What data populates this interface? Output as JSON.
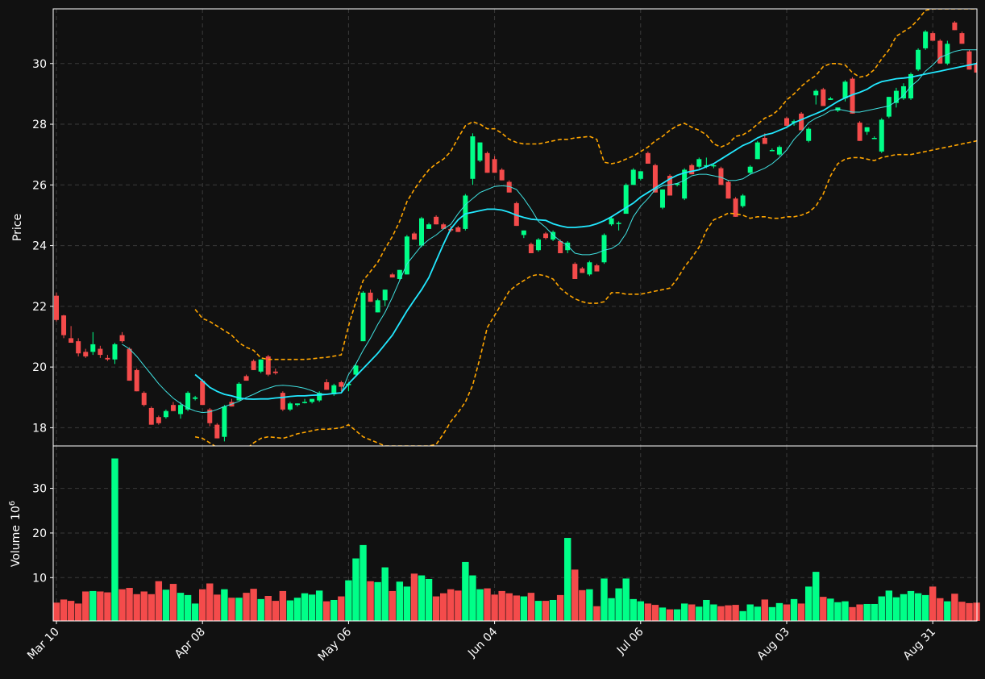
{
  "colors": {
    "background": "#111111",
    "up": "#00ff88",
    "down": "#f44b4b",
    "bollinger": "#ffa500",
    "ma_fast": "#40e0e0",
    "ma_slow": "#22e8ff",
    "grid": "#3a3a3a",
    "text": "#ffffff"
  },
  "chart_data": {
    "type": "candlestick",
    "title": "",
    "grid": true,
    "price_panel": {
      "ylabel": "Price",
      "ylim": [
        17.4,
        31.8
      ],
      "yticks": [
        "18",
        "20",
        "22",
        "24",
        "26",
        "28",
        "30"
      ]
    },
    "volume_panel": {
      "ylabel": "Volume",
      "ylabel_exponent": "10",
      "ylabel_power": "6",
      "ylim": [
        0.3,
        39.5
      ],
      "yticks": [
        "10",
        "20",
        "30"
      ]
    },
    "x_axis": {
      "tick_labels": [
        "Mar 10",
        "Apr 08",
        "May 06",
        "Jun 04",
        "Jul 06",
        "Aug 03",
        "Aug 31"
      ],
      "tick_index": [
        0,
        20,
        40,
        60,
        80,
        100,
        120
      ]
    },
    "overlays": [
      "Bollinger upper",
      "Bollinger lower",
      "MA 10",
      "MA 20"
    ],
    "candles": [
      [
        22.35,
        22.45,
        21.5,
        21.55
      ],
      [
        21.7,
        21.72,
        20.95,
        21.05
      ],
      [
        20.95,
        21.35,
        20.8,
        20.8
      ],
      [
        20.85,
        20.95,
        20.35,
        20.45
      ],
      [
        20.5,
        20.6,
        20.3,
        20.35
      ],
      [
        20.5,
        21.15,
        20.4,
        20.75
      ],
      [
        20.6,
        20.7,
        20.3,
        20.4
      ],
      [
        20.3,
        20.4,
        20.2,
        20.25
      ],
      [
        20.25,
        20.8,
        20.1,
        20.75
      ],
      [
        21.05,
        21.15,
        20.8,
        20.85
      ],
      [
        20.6,
        20.65,
        19.55,
        19.55
      ],
      [
        19.9,
        19.95,
        19.2,
        19.2
      ],
      [
        19.15,
        19.2,
        18.7,
        18.75
      ],
      [
        18.65,
        18.7,
        18.1,
        18.1
      ],
      [
        18.35,
        18.4,
        18.1,
        18.15
      ],
      [
        18.35,
        18.6,
        18.3,
        18.55
      ],
      [
        18.75,
        18.85,
        18.55,
        18.55
      ],
      [
        18.45,
        18.85,
        18.3,
        18.75
      ],
      [
        18.6,
        19.2,
        18.55,
        19.15
      ],
      [
        18.95,
        19.05,
        18.9,
        19.0
      ],
      [
        19.55,
        19.6,
        18.75,
        18.75
      ],
      [
        18.6,
        18.65,
        18.05,
        18.15
      ],
      [
        18.1,
        18.15,
        17.65,
        17.65
      ],
      [
        17.7,
        18.75,
        17.55,
        18.7
      ],
      [
        18.85,
        18.95,
        18.7,
        18.7
      ],
      [
        18.9,
        19.5,
        18.9,
        19.45
      ],
      [
        19.7,
        19.75,
        19.55,
        19.55
      ],
      [
        20.2,
        20.25,
        19.9,
        19.9
      ],
      [
        19.85,
        20.25,
        19.8,
        20.25
      ],
      [
        20.35,
        20.4,
        19.7,
        19.75
      ],
      [
        19.85,
        19.95,
        19.75,
        19.8
      ],
      [
        19.15,
        19.2,
        18.55,
        18.6
      ],
      [
        18.6,
        18.85,
        18.55,
        18.8
      ],
      [
        18.75,
        18.8,
        18.7,
        18.8
      ],
      [
        18.85,
        18.95,
        18.8,
        18.85
      ],
      [
        18.85,
        18.95,
        18.8,
        18.95
      ],
      [
        18.9,
        19.2,
        18.85,
        19.15
      ],
      [
        19.5,
        19.6,
        19.25,
        19.25
      ],
      [
        19.1,
        19.45,
        19.05,
        19.4
      ],
      [
        19.5,
        19.55,
        19.2,
        19.35
      ],
      [
        19.4,
        19.5,
        19.2,
        19.45
      ],
      [
        19.75,
        20.1,
        19.7,
        20.05
      ],
      [
        20.85,
        22.5,
        20.85,
        22.45
      ],
      [
        22.45,
        22.55,
        22.15,
        22.15
      ],
      [
        21.8,
        22.25,
        21.8,
        22.2
      ],
      [
        22.2,
        22.55,
        22.0,
        22.55
      ],
      [
        23.05,
        23.1,
        22.95,
        22.95
      ],
      [
        22.9,
        23.2,
        22.85,
        23.2
      ],
      [
        23.05,
        24.35,
        23.05,
        24.3
      ],
      [
        24.4,
        24.45,
        24.2,
        24.2
      ],
      [
        24.0,
        24.95,
        23.95,
        24.9
      ],
      [
        24.55,
        24.75,
        24.55,
        24.7
      ],
      [
        24.95,
        25.0,
        24.7,
        24.7
      ],
      [
        24.7,
        24.75,
        24.55,
        24.55
      ],
      [
        24.55,
        24.65,
        24.45,
        24.5
      ],
      [
        24.6,
        24.65,
        24.45,
        24.45
      ],
      [
        24.55,
        25.7,
        24.5,
        25.65
      ],
      [
        26.2,
        27.7,
        26.0,
        27.6
      ],
      [
        26.8,
        27.4,
        26.75,
        27.4
      ],
      [
        27.05,
        27.1,
        26.4,
        26.4
      ],
      [
        26.85,
        26.95,
        26.4,
        26.4
      ],
      [
        26.5,
        26.55,
        26.15,
        26.15
      ],
      [
        26.1,
        26.15,
        25.75,
        25.75
      ],
      [
        25.4,
        25.45,
        24.65,
        24.65
      ],
      [
        24.35,
        24.5,
        24.25,
        24.5
      ],
      [
        24.05,
        24.1,
        23.75,
        23.75
      ],
      [
        23.85,
        24.25,
        23.8,
        24.2
      ],
      [
        24.4,
        24.45,
        24.2,
        24.25
      ],
      [
        24.2,
        24.5,
        24.15,
        24.45
      ],
      [
        24.15,
        24.2,
        23.75,
        23.75
      ],
      [
        23.85,
        24.15,
        23.75,
        24.1
      ],
      [
        23.4,
        23.45,
        22.9,
        22.9
      ],
      [
        23.25,
        23.3,
        23.1,
        23.1
      ],
      [
        23.05,
        23.5,
        23.0,
        23.45
      ],
      [
        23.35,
        23.4,
        23.15,
        23.15
      ],
      [
        23.45,
        24.4,
        23.4,
        24.35
      ],
      [
        24.7,
        24.95,
        24.65,
        24.9
      ],
      [
        24.75,
        24.8,
        24.5,
        24.75
      ],
      [
        25.05,
        26.05,
        25.05,
        26.0
      ],
      [
        26.0,
        26.55,
        26.0,
        26.5
      ],
      [
        26.2,
        26.45,
        26.15,
        26.45
      ],
      [
        27.05,
        27.1,
        26.7,
        26.7
      ],
      [
        26.65,
        26.7,
        25.75,
        25.75
      ],
      [
        25.25,
        25.85,
        25.2,
        25.85
      ],
      [
        26.3,
        26.35,
        25.65,
        25.65
      ],
      [
        26.0,
        26.05,
        25.95,
        26.05
      ],
      [
        25.55,
        26.55,
        25.5,
        26.5
      ],
      [
        26.65,
        26.7,
        26.35,
        26.35
      ],
      [
        26.6,
        26.9,
        26.55,
        26.85
      ],
      [
        26.6,
        26.9,
        26.55,
        26.65
      ],
      [
        26.65,
        26.7,
        26.55,
        26.65
      ],
      [
        26.55,
        26.6,
        26.0,
        26.0
      ],
      [
        26.1,
        26.15,
        25.55,
        25.55
      ],
      [
        25.55,
        25.6,
        24.95,
        24.95
      ],
      [
        25.3,
        25.7,
        25.25,
        25.65
      ],
      [
        26.4,
        26.65,
        26.35,
        26.6
      ],
      [
        26.85,
        27.45,
        26.85,
        27.4
      ],
      [
        27.55,
        27.7,
        27.35,
        27.35
      ],
      [
        27.15,
        27.2,
        27.15,
        27.15
      ],
      [
        27.0,
        27.3,
        26.95,
        27.25
      ],
      [
        28.2,
        28.25,
        27.95,
        27.95
      ],
      [
        28.05,
        28.15,
        27.95,
        28.1
      ],
      [
        28.35,
        28.4,
        27.8,
        27.8
      ],
      [
        27.45,
        27.9,
        27.4,
        27.85
      ],
      [
        28.95,
        29.15,
        28.65,
        29.1
      ],
      [
        29.15,
        29.2,
        28.6,
        28.6
      ],
      [
        28.8,
        28.9,
        28.8,
        28.85
      ],
      [
        28.45,
        28.55,
        28.4,
        28.55
      ],
      [
        28.85,
        29.45,
        28.75,
        29.4
      ],
      [
        29.5,
        29.55,
        28.35,
        28.35
      ],
      [
        28.05,
        28.1,
        27.45,
        27.45
      ],
      [
        27.75,
        27.9,
        27.65,
        27.9
      ],
      [
        27.55,
        27.6,
        27.55,
        27.55
      ],
      [
        27.1,
        28.2,
        27.05,
        28.15
      ],
      [
        28.25,
        28.9,
        28.2,
        28.9
      ],
      [
        28.7,
        29.2,
        28.55,
        29.1
      ],
      [
        28.85,
        29.35,
        28.8,
        29.25
      ],
      [
        28.85,
        29.7,
        28.8,
        29.65
      ],
      [
        29.8,
        30.5,
        29.75,
        30.45
      ],
      [
        30.5,
        31.1,
        30.45,
        31.05
      ],
      [
        31.0,
        31.05,
        30.75,
        30.75
      ],
      [
        30.75,
        30.8,
        30.0,
        30.0
      ],
      [
        30.0,
        30.75,
        29.95,
        30.65
      ],
      [
        31.35,
        31.4,
        31.1,
        31.1
      ],
      [
        31.0,
        31.05,
        30.65,
        30.65
      ],
      [
        30.4,
        30.45,
        29.8,
        29.8
      ],
      [
        30.0,
        30.05,
        29.7,
        29.7
      ]
    ],
    "volume": [
      4.4,
      5.1,
      4.8,
      4.2,
      6.9,
      7.0,
      6.9,
      6.7,
      36.7,
      7.4,
      7.7,
      6.3,
      6.9,
      6.3,
      9.2,
      7.3,
      8.6,
      6.6,
      6.1,
      4.2,
      7.4,
      8.7,
      6.2,
      7.4,
      5.5,
      5.5,
      6.6,
      7.5,
      5.2,
      5.9,
      4.8,
      7.0,
      4.9,
      5.5,
      6.5,
      6.2,
      7.1,
      4.7,
      5.0,
      5.8,
      9.4,
      14.3,
      17.3,
      9.2,
      9.0,
      12.3,
      7.0,
      9.1,
      8.0,
      10.9,
      10.5,
      9.7,
      5.8,
      6.5,
      7.4,
      7.1,
      13.5,
      10.5,
      7.4,
      7.6,
      6.2,
      7.0,
      6.5,
      6.0,
      5.8,
      6.6,
      4.8,
      4.8,
      5.0,
      6.1,
      18.9,
      11.8,
      7.2,
      7.4,
      3.6,
      9.8,
      5.4,
      7.6,
      9.8,
      5.2,
      4.7,
      4.2,
      3.9,
      3.3,
      2.9,
      2.9,
      4.2,
      4.0,
      3.5,
      5.0,
      4.0,
      3.6,
      3.8,
      3.9,
      2.5,
      4.0,
      3.5,
      5.1,
      3.4,
      4.3,
      4.0,
      5.2,
      4.2,
      8.0,
      11.3,
      5.7,
      5.3,
      4.5,
      4.7,
      3.4,
      4.0,
      4.1,
      4.1,
      5.8,
      7.1,
      5.6,
      6.3,
      7.0,
      6.5,
      6.1,
      8.0,
      5.4,
      4.7,
      6.4,
      4.6,
      4.3,
      4.4
    ],
    "bollinger_upper": [
      null,
      null,
      null,
      null,
      null,
      null,
      null,
      null,
      null,
      null,
      null,
      null,
      null,
      null,
      null,
      null,
      null,
      null,
      null,
      21.9,
      21.6,
      21.5,
      21.35,
      21.2,
      21.05,
      20.8,
      20.65,
      20.55,
      20.3,
      20.25,
      20.25,
      20.25,
      20.25,
      20.25,
      20.25,
      20.27,
      20.3,
      20.32,
      20.36,
      20.4,
      21.35,
      22.15,
      22.85,
      23.15,
      23.45,
      23.9,
      24.3,
      24.8,
      25.45,
      25.85,
      26.2,
      26.5,
      26.7,
      26.85,
      27.1,
      27.55,
      27.95,
      28.08,
      28.0,
      27.85,
      27.85,
      27.7,
      27.5,
      27.4,
      27.35,
      27.35,
      27.35,
      27.4,
      27.45,
      27.5,
      27.5,
      27.55,
      27.57,
      27.6,
      27.5,
      26.75,
      26.7,
      26.75,
      26.85,
      26.95,
      27.1,
      27.25,
      27.45,
      27.6,
      27.8,
      27.95,
      28.03,
      27.9,
      27.8,
      27.65,
      27.35,
      27.25,
      27.35,
      27.6,
      27.65,
      27.8,
      28.0,
      28.2,
      28.3,
      28.5,
      28.8,
      29.0,
      29.25,
      29.45,
      29.6,
      29.9,
      30.0,
      30.0,
      29.95,
      29.7,
      29.55,
      29.6,
      29.8,
      30.15,
      30.45,
      30.9,
      31.05,
      31.2,
      31.45,
      31.75,
      31.8,
      31.8,
      31.8,
      31.8,
      31.8,
      31.8,
      31.8
    ],
    "bollinger_lower": [
      null,
      null,
      null,
      null,
      null,
      null,
      null,
      null,
      null,
      null,
      null,
      null,
      null,
      null,
      null,
      null,
      null,
      null,
      null,
      17.7,
      17.65,
      17.5,
      17.35,
      17.2,
      17.2,
      17.2,
      17.3,
      17.5,
      17.65,
      17.7,
      17.68,
      17.65,
      17.72,
      17.8,
      17.85,
      17.9,
      17.95,
      17.95,
      17.97,
      18.0,
      18.1,
      17.9,
      17.7,
      17.6,
      17.5,
      17.4,
      17.4,
      17.4,
      17.4,
      17.4,
      17.4,
      17.4,
      17.45,
      17.8,
      18.2,
      18.5,
      18.85,
      19.4,
      20.3,
      21.3,
      21.7,
      22.1,
      22.5,
      22.7,
      22.85,
      23.0,
      23.05,
      23.0,
      22.9,
      22.6,
      22.4,
      22.25,
      22.15,
      22.1,
      22.1,
      22.15,
      22.45,
      22.45,
      22.4,
      22.4,
      22.4,
      22.45,
      22.5,
      22.55,
      22.6,
      22.9,
      23.3,
      23.6,
      23.95,
      24.5,
      24.85,
      24.95,
      25.07,
      25.05,
      25.0,
      24.9,
      24.95,
      24.95,
      24.9,
      24.9,
      24.95,
      24.95,
      25.0,
      25.1,
      25.3,
      25.7,
      26.3,
      26.7,
      26.85,
      26.9,
      26.9,
      26.85,
      26.8,
      26.9,
      26.95,
      27.0,
      27.0,
      27.0,
      27.05,
      27.1,
      27.15,
      27.2,
      27.25,
      27.3,
      27.35,
      27.4,
      27.45
    ],
    "ma_fast": [
      null,
      null,
      null,
      null,
      null,
      null,
      null,
      null,
      null,
      20.75,
      20.6,
      20.35,
      20.05,
      19.75,
      19.45,
      19.2,
      18.97,
      18.8,
      18.65,
      18.55,
      18.5,
      18.52,
      18.6,
      18.7,
      18.78,
      18.87,
      19.0,
      19.1,
      19.22,
      19.3,
      19.38,
      19.4,
      19.38,
      19.35,
      19.3,
      19.22,
      19.12,
      19.1,
      19.13,
      19.15,
      19.75,
      20.1,
      20.55,
      20.95,
      21.4,
      21.8,
      22.3,
      22.85,
      23.4,
      23.7,
      24.0,
      24.2,
      24.35,
      24.55,
      24.7,
      25.05,
      25.35,
      25.55,
      25.75,
      25.85,
      25.95,
      25.97,
      25.95,
      25.85,
      25.55,
      25.2,
      24.8,
      24.6,
      24.35,
      24.15,
      24.0,
      23.75,
      23.7,
      23.7,
      23.75,
      23.85,
      23.9,
      24.05,
      24.4,
      24.95,
      25.3,
      25.55,
      25.85,
      25.97,
      26.0,
      26.05,
      26.15,
      26.3,
      26.35,
      26.35,
      26.3,
      26.25,
      26.15,
      26.15,
      26.2,
      26.35,
      26.45,
      26.55,
      26.7,
      26.9,
      27.15,
      27.5,
      27.75,
      28.05,
      28.2,
      28.3,
      28.45,
      28.5,
      28.45,
      28.4,
      28.4,
      28.45,
      28.5,
      28.55,
      28.6,
      28.75,
      28.95,
      29.25,
      29.45,
      29.75,
      29.95,
      30.2,
      30.3,
      30.4,
      30.45,
      30.45,
      30.45
    ],
    "ma_slow": [
      null,
      null,
      null,
      null,
      null,
      null,
      null,
      null,
      null,
      null,
      null,
      null,
      null,
      null,
      null,
      null,
      null,
      null,
      null,
      19.75,
      19.55,
      19.33,
      19.2,
      19.1,
      19.05,
      18.98,
      18.95,
      18.94,
      18.95,
      18.95,
      18.98,
      19.0,
      19.03,
      19.05,
      19.05,
      19.07,
      19.08,
      19.1,
      19.13,
      19.15,
      19.45,
      19.7,
      19.95,
      20.2,
      20.45,
      20.75,
      21.05,
      21.45,
      21.85,
      22.2,
      22.55,
      22.95,
      23.5,
      24.05,
      24.55,
      24.85,
      25.05,
      25.1,
      25.15,
      25.2,
      25.2,
      25.17,
      25.1,
      25.0,
      24.93,
      24.87,
      24.85,
      24.83,
      24.72,
      24.65,
      24.6,
      24.6,
      24.62,
      24.65,
      24.72,
      24.82,
      24.95,
      25.1,
      25.25,
      25.4,
      25.6,
      25.75,
      25.9,
      26.05,
      26.2,
      26.32,
      26.4,
      26.45,
      26.5,
      26.6,
      26.7,
      26.85,
      27.0,
      27.15,
      27.3,
      27.4,
      27.55,
      27.65,
      27.7,
      27.8,
      27.9,
      28.05,
      28.15,
      28.25,
      28.35,
      28.45,
      28.6,
      28.75,
      28.87,
      28.97,
      29.05,
      29.15,
      29.3,
      29.4,
      29.45,
      29.5,
      29.52,
      29.55,
      29.6,
      29.65,
      29.7,
      29.75,
      29.8,
      29.85,
      29.9,
      29.95,
      30.0
    ]
  }
}
